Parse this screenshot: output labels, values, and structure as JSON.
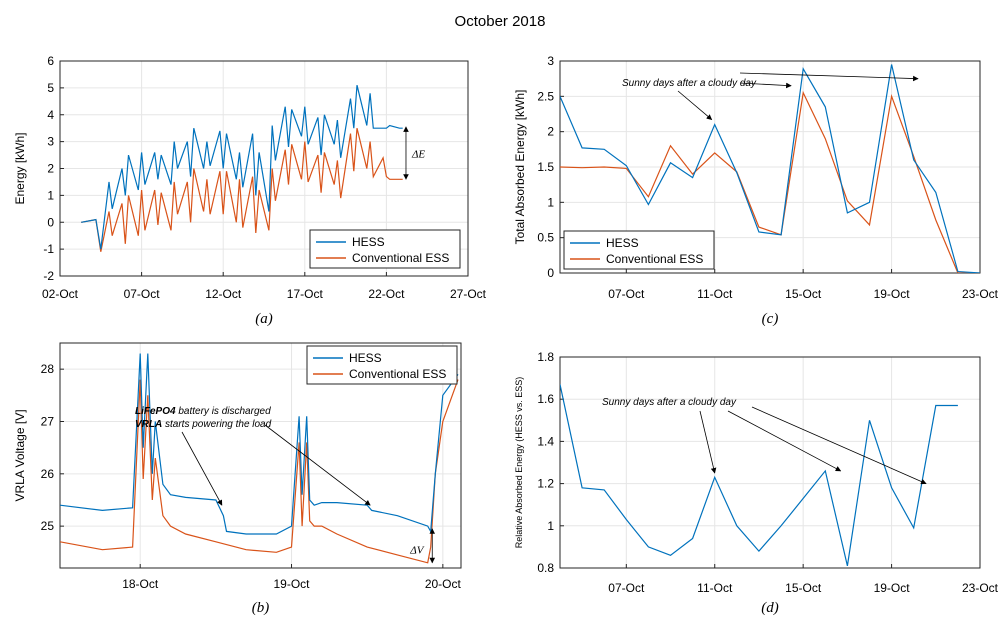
{
  "figure_title": "October 2018",
  "colors": {
    "hess": "#0072BD",
    "ess": "#D95319",
    "grid": "#e6e6e6",
    "axis": "#262626"
  },
  "chart_data": [
    {
      "panel": "a",
      "caption": "(a)",
      "type": "line",
      "xlabel": "",
      "ylabel": "Energy [kWh]",
      "xlim": [
        "02-Oct",
        "27-Oct"
      ],
      "ylim": [
        -2,
        6
      ],
      "xticks": [
        "02-Oct",
        "07-Oct",
        "12-Oct",
        "17-Oct",
        "22-Oct",
        "27-Oct"
      ],
      "yticks": [
        "-2",
        "-1",
        "0",
        "1",
        "2",
        "3",
        "4",
        "5",
        "6"
      ],
      "legend": [
        "HESS",
        "Conventional ESS"
      ],
      "legend_position": "bottom-right",
      "annotation": "ΔE",
      "series": [
        {
          "name": "HESS",
          "x": [
            3.3,
            4.2,
            4.5,
            5.0,
            5.2,
            5.8,
            6.0,
            6.2,
            6.8,
            7.0,
            7.2,
            7.8,
            8.0,
            8.2,
            8.8,
            9.0,
            9.2,
            9.8,
            10.0,
            10.2,
            10.8,
            11.0,
            11.2,
            11.8,
            12.0,
            12.2,
            12.8,
            13.0,
            13.2,
            13.8,
            14.0,
            14.2,
            14.8,
            15.0,
            15.2,
            15.8,
            16.0,
            16.2,
            16.8,
            17.0,
            17.2,
            17.8,
            18.0,
            18.2,
            18.8,
            19.0,
            19.2,
            19.8,
            20.0,
            20.2,
            20.8,
            21.0,
            21.2,
            21.8,
            22.0,
            22.2,
            22.8,
            23.0
          ],
          "values": [
            0.0,
            0.1,
            -1.0,
            1.5,
            0.5,
            2.0,
            1.0,
            2.5,
            1.2,
            2.6,
            1.4,
            2.6,
            1.6,
            2.5,
            1.4,
            3.0,
            2.0,
            3.0,
            1.7,
            3.5,
            2.0,
            3.0,
            2.1,
            3.4,
            2.0,
            3.3,
            1.6,
            2.6,
            1.3,
            3.3,
            1.0,
            2.6,
            0.4,
            3.6,
            2.3,
            4.3,
            2.8,
            4.2,
            3.2,
            4.3,
            2.9,
            3.9,
            2.5,
            4.0,
            2.9,
            3.8,
            2.4,
            4.6,
            3.5,
            5.1,
            3.6,
            4.8,
            3.5,
            3.5,
            3.5,
            3.6,
            3.5,
            3.5
          ]
        },
        {
          "name": "Conventional ESS",
          "x": [
            3.3,
            4.2,
            4.5,
            5.0,
            5.2,
            5.8,
            6.0,
            6.2,
            6.8,
            7.0,
            7.2,
            7.8,
            8.0,
            8.2,
            8.8,
            9.0,
            9.2,
            9.8,
            10.0,
            10.2,
            10.8,
            11.0,
            11.2,
            11.8,
            12.0,
            12.2,
            12.8,
            13.0,
            13.2,
            13.8,
            14.0,
            14.2,
            14.8,
            15.0,
            15.2,
            15.8,
            16.0,
            16.2,
            16.8,
            17.0,
            17.2,
            17.8,
            18.0,
            18.2,
            18.8,
            19.0,
            19.2,
            19.8,
            20.0,
            20.2,
            20.8,
            21.0,
            21.2,
            21.8,
            22.0,
            22.2,
            22.8,
            23.0
          ],
          "values": [
            0.0,
            0.1,
            -1.1,
            0.4,
            -0.5,
            0.7,
            -0.8,
            1.0,
            -0.5,
            1.2,
            -0.3,
            1.2,
            -0.1,
            1.1,
            -0.3,
            1.5,
            0.3,
            1.5,
            0.0,
            2.0,
            0.4,
            1.6,
            0.3,
            1.9,
            0.3,
            1.9,
            0.0,
            1.6,
            -0.2,
            1.7,
            -0.4,
            1.2,
            -0.3,
            2.0,
            0.8,
            2.7,
            1.4,
            2.9,
            1.6,
            3.0,
            1.5,
            2.5,
            1.1,
            2.6,
            1.4,
            2.3,
            0.9,
            3.3,
            1.9,
            3.5,
            2.0,
            3.0,
            1.7,
            2.4,
            1.7,
            1.6,
            1.6,
            1.6
          ]
        }
      ]
    },
    {
      "panel": "b",
      "caption": "(b)",
      "type": "line",
      "xlabel": "",
      "ylabel": "VRLA Voltage [V]",
      "ylim": [
        24.2,
        28.5
      ],
      "xticks": [
        "18-Oct",
        "19-Oct",
        "20-Oct"
      ],
      "yticks": [
        "25",
        "26",
        "27",
        "28"
      ],
      "legend": [
        "HESS",
        "Conventional ESS"
      ],
      "legend_position": "top-right",
      "annotation_line1_bold": "LiFePO4",
      "annotation_line1_rest": " battery is discharged",
      "annotation_line2_bold": "VRLA",
      "annotation_line2_rest": " starts powering the load",
      "annotation_dv": "ΔV",
      "series": [
        {
          "name": "HESS",
          "x": [
            17.47,
            17.75,
            17.95,
            18.0,
            18.02,
            18.05,
            18.08,
            18.1,
            18.15,
            18.2,
            18.3,
            18.5,
            18.55,
            18.57,
            18.7,
            18.9,
            19.0,
            19.05,
            19.07,
            19.1,
            19.12,
            19.15,
            19.2,
            19.3,
            19.5,
            19.53,
            19.7,
            19.9,
            19.92,
            19.95,
            20.0,
            20.1
          ],
          "values": [
            25.4,
            25.3,
            25.35,
            28.3,
            26.5,
            28.3,
            26.0,
            27.0,
            25.8,
            25.6,
            25.55,
            25.5,
            25.2,
            24.9,
            24.85,
            24.85,
            25.0,
            27.1,
            25.6,
            27.1,
            25.5,
            25.4,
            25.45,
            25.45,
            25.4,
            25.3,
            25.2,
            25.0,
            24.9,
            26.0,
            27.5,
            27.9
          ]
        },
        {
          "name": "Conventional ESS",
          "x": [
            17.47,
            17.75,
            17.95,
            18.0,
            18.02,
            18.05,
            18.08,
            18.1,
            18.15,
            18.2,
            18.3,
            18.5,
            18.7,
            18.9,
            19.0,
            19.05,
            19.07,
            19.1,
            19.12,
            19.15,
            19.2,
            19.3,
            19.5,
            19.7,
            19.9,
            19.92,
            19.95,
            20.0,
            20.1
          ],
          "values": [
            24.7,
            24.55,
            24.6,
            27.8,
            25.9,
            27.5,
            25.5,
            26.3,
            25.2,
            25.0,
            24.85,
            24.7,
            24.55,
            24.5,
            24.6,
            26.6,
            25.0,
            26.6,
            25.1,
            25.0,
            25.0,
            24.85,
            24.6,
            24.45,
            24.3,
            24.6,
            26.0,
            27.0,
            27.8
          ]
        }
      ]
    },
    {
      "panel": "c",
      "caption": "(c)",
      "type": "line",
      "xlabel": "",
      "ylabel": "Total Absorbed Energy [kWh]",
      "ylim": [
        0,
        3
      ],
      "xticks": [
        "07-Oct",
        "11-Oct",
        "15-Oct",
        "19-Oct",
        "23-Oct"
      ],
      "yticks": [
        "0",
        "0.5",
        "1",
        "1.5",
        "2",
        "2.5",
        "3"
      ],
      "legend": [
        "HESS",
        "Conventional ESS"
      ],
      "legend_position": "bottom-left",
      "annotation": "Sunny days after a cloudy day",
      "series": [
        {
          "name": "HESS",
          "x": [
            4,
            5,
            6,
            7,
            8,
            9,
            10,
            11,
            12,
            13,
            14,
            15,
            16,
            17,
            18,
            19,
            20,
            21,
            22,
            23
          ],
          "values": [
            2.5,
            1.77,
            1.75,
            1.52,
            0.97,
            1.56,
            1.35,
            2.1,
            1.42,
            0.58,
            0.54,
            2.89,
            2.35,
            0.85,
            1.0,
            2.95,
            1.6,
            1.14,
            0.02,
            0
          ]
        },
        {
          "name": "Conventional ESS",
          "x": [
            4,
            5,
            6,
            7,
            8,
            9,
            10,
            11,
            12,
            13,
            14,
            15,
            16,
            17,
            18,
            19,
            20,
            21,
            22,
            23
          ],
          "values": [
            1.5,
            1.49,
            1.5,
            1.48,
            1.08,
            1.8,
            1.4,
            1.7,
            1.43,
            0.65,
            0.54,
            2.55,
            1.9,
            1.02,
            0.68,
            2.5,
            1.65,
            0.75,
            0.0,
            0
          ]
        }
      ]
    },
    {
      "panel": "d",
      "caption": "(d)",
      "type": "line",
      "xlabel": "",
      "ylabel": "Relative Absorbed Energy (HESS vs. ESS)",
      "ylim": [
        0.8,
        1.8
      ],
      "xticks": [
        "07-Oct",
        "11-Oct",
        "15-Oct",
        "19-Oct",
        "23-Oct"
      ],
      "yticks": [
        "0.8",
        "1",
        "1.2",
        "1.4",
        "1.6",
        "1.8"
      ],
      "annotation": "Sunny days after a cloudy day",
      "series": [
        {
          "name": "HESS",
          "x": [
            4,
            5,
            6,
            7,
            8,
            9,
            10,
            11,
            12,
            13,
            14,
            15,
            16,
            17,
            18,
            19,
            20,
            21,
            22
          ],
          "values": [
            1.67,
            1.18,
            1.17,
            1.03,
            0.9,
            0.86,
            0.94,
            1.23,
            1.0,
            0.88,
            1.0,
            1.13,
            1.26,
            0.81,
            1.5,
            1.18,
            0.99,
            1.57,
            1.57
          ]
        }
      ]
    }
  ]
}
